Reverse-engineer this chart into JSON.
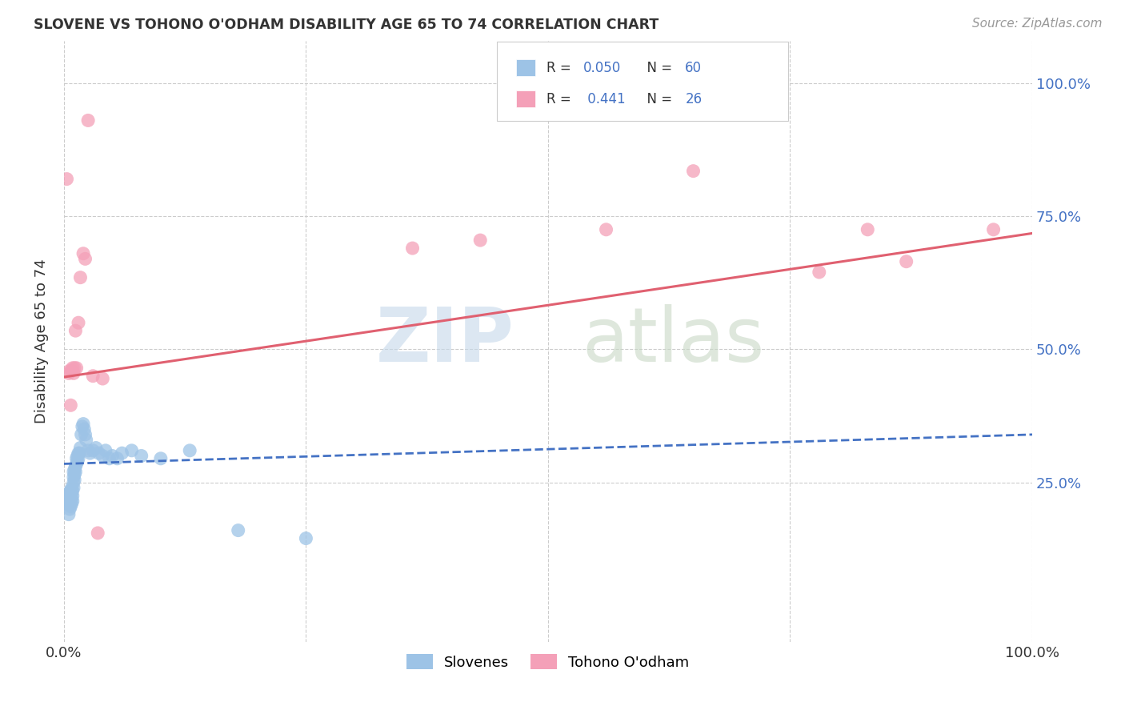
{
  "title": "SLOVENE VS TOHONO O'ODHAM DISABILITY AGE 65 TO 74 CORRELATION CHART",
  "source": "Source: ZipAtlas.com",
  "ylabel": "Disability Age 65 to 74",
  "xlim": [
    0,
    1
  ],
  "ylim": [
    -0.05,
    1.08
  ],
  "bottom_legend": [
    "Slovenes",
    "Tohono O'odham"
  ],
  "slovene_color": "#9dc3e6",
  "tohono_color": "#f4a0b8",
  "slovene_line_color": "#4472c4",
  "tohono_line_color": "#e06070",
  "background_color": "#ffffff",
  "grid_color": "#cccccc",
  "slovene_x": [
    0.003,
    0.004,
    0.004,
    0.005,
    0.005,
    0.005,
    0.006,
    0.006,
    0.006,
    0.007,
    0.007,
    0.007,
    0.007,
    0.008,
    0.008,
    0.008,
    0.008,
    0.009,
    0.009,
    0.009,
    0.01,
    0.01,
    0.01,
    0.01,
    0.011,
    0.011,
    0.011,
    0.012,
    0.012,
    0.013,
    0.013,
    0.014,
    0.014,
    0.015,
    0.015,
    0.016,
    0.017,
    0.018,
    0.019,
    0.02,
    0.021,
    0.022,
    0.023,
    0.025,
    0.027,
    0.03,
    0.033,
    0.036,
    0.04,
    0.043,
    0.047,
    0.05,
    0.055,
    0.06,
    0.07,
    0.08,
    0.1,
    0.13,
    0.18,
    0.25
  ],
  "slovene_y": [
    0.22,
    0.215,
    0.225,
    0.19,
    0.21,
    0.23,
    0.2,
    0.215,
    0.225,
    0.205,
    0.215,
    0.225,
    0.235,
    0.21,
    0.22,
    0.23,
    0.24,
    0.215,
    0.225,
    0.235,
    0.24,
    0.25,
    0.26,
    0.27,
    0.255,
    0.265,
    0.275,
    0.27,
    0.28,
    0.285,
    0.295,
    0.29,
    0.3,
    0.295,
    0.305,
    0.305,
    0.315,
    0.34,
    0.355,
    0.36,
    0.35,
    0.34,
    0.33,
    0.31,
    0.305,
    0.31,
    0.315,
    0.305,
    0.3,
    0.31,
    0.295,
    0.3,
    0.295,
    0.305,
    0.31,
    0.3,
    0.295,
    0.31,
    0.16,
    0.145
  ],
  "tohono_x": [
    0.003,
    0.005,
    0.006,
    0.007,
    0.008,
    0.009,
    0.01,
    0.011,
    0.012,
    0.013,
    0.015,
    0.017,
    0.02,
    0.022,
    0.025,
    0.03,
    0.035,
    0.04,
    0.36,
    0.43,
    0.56,
    0.65,
    0.78,
    0.83,
    0.87,
    0.96
  ],
  "tohono_y": [
    0.82,
    0.455,
    0.46,
    0.395,
    0.46,
    0.465,
    0.455,
    0.465,
    0.535,
    0.465,
    0.55,
    0.635,
    0.68,
    0.67,
    0.93,
    0.45,
    0.155,
    0.445,
    0.69,
    0.705,
    0.725,
    0.835,
    0.645,
    0.725,
    0.665,
    0.725
  ],
  "slovene_trend_start": 0.285,
  "slovene_trend_end": 0.34,
  "tohono_trend_start": 0.448,
  "tohono_trend_end": 0.718,
  "r_label_color": "#4472c4",
  "legend_text_color": "#333333"
}
